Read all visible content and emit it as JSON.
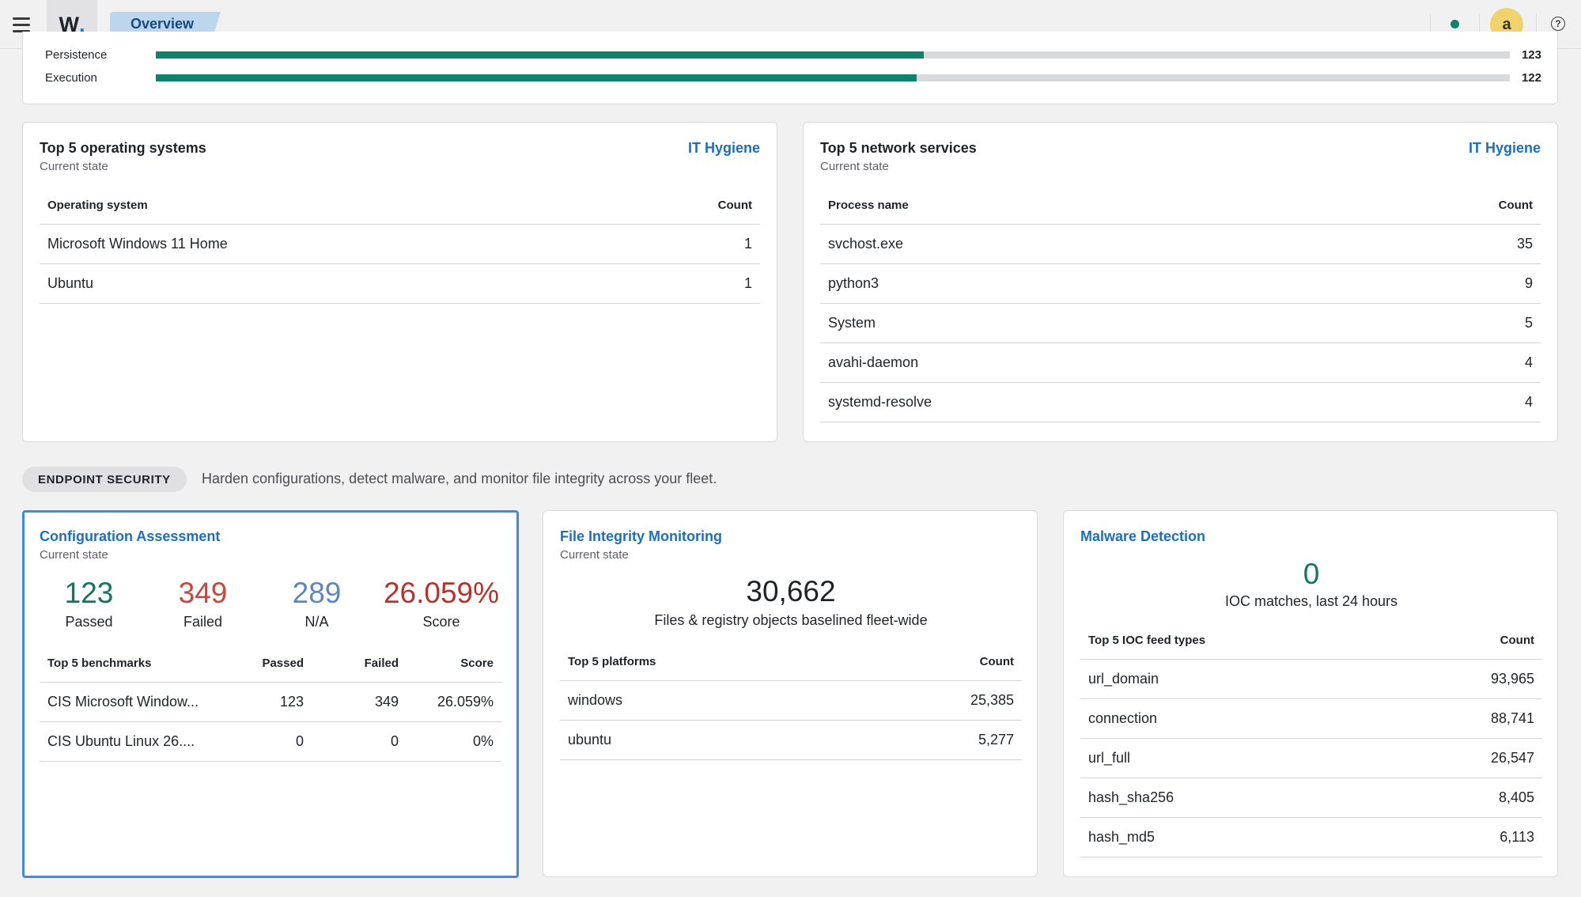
{
  "header": {
    "logo_letter": "W",
    "logo_dot": ".",
    "breadcrumb": "Overview",
    "avatar_letter": "a",
    "help_glyph": "?",
    "status_color": "#11826b"
  },
  "mitre": {
    "rows": [
      {
        "label": "Persistence",
        "value": "123",
        "fill": 0.567
      },
      {
        "label": "Execution",
        "value": "122",
        "fill": 0.562
      }
    ]
  },
  "os_card": {
    "title": "Top 5 operating systems",
    "subtitle": "Current state",
    "link": "IT Hygiene",
    "columns": [
      "Operating system",
      "Count"
    ],
    "rows": [
      [
        "Microsoft Windows 11 Home",
        "1"
      ],
      [
        "Ubuntu",
        "1"
      ]
    ]
  },
  "net_card": {
    "title": "Top 5 network services",
    "subtitle": "Current state",
    "link": "IT Hygiene",
    "columns": [
      "Process name",
      "Count"
    ],
    "rows": [
      [
        "svchost.exe",
        "35"
      ],
      [
        "python3",
        "9"
      ],
      [
        "System",
        "5"
      ],
      [
        "avahi-daemon",
        "4"
      ],
      [
        "systemd-resolve",
        "4"
      ]
    ]
  },
  "section": {
    "pill": "ENDPOINT SECURITY",
    "description": "Harden configurations, detect malware, and monitor file integrity across your fleet."
  },
  "config_card": {
    "title": "Configuration Assessment",
    "subtitle": "Current state",
    "metrics": [
      {
        "value": "123",
        "label": "Passed",
        "color": "#10775f"
      },
      {
        "value": "349",
        "label": "Failed",
        "color": "#c8473b"
      },
      {
        "value": "289",
        "label": "N/A",
        "color": "#5c87b8"
      },
      {
        "value": "26.059%",
        "label": "Score",
        "color": "#b8322c"
      }
    ],
    "columns": [
      "Top 5 benchmarks",
      "Passed",
      "Failed",
      "Score"
    ],
    "rows": [
      [
        "CIS Microsoft Window...",
        "123",
        "349",
        "26.059%"
      ],
      [
        "CIS Ubuntu Linux 26....",
        "0",
        "0",
        "0%"
      ]
    ]
  },
  "fim_card": {
    "title": "File Integrity Monitoring",
    "subtitle": "Current state",
    "big_value": "30,662",
    "big_label": "Files & registry objects baselined fleet-wide",
    "columns": [
      "Top 5 platforms",
      "Count"
    ],
    "rows": [
      [
        "windows",
        "25,385"
      ],
      [
        "ubuntu",
        "5,277"
      ]
    ]
  },
  "malware_card": {
    "title": "Malware Detection",
    "big_value": "0",
    "big_label": "IOC matches, last 24 hours",
    "big_color": "#10775f",
    "columns": [
      "Top 5 IOC feed types",
      "Count"
    ],
    "rows": [
      [
        "url_domain",
        "93,965"
      ],
      [
        "connection",
        "88,741"
      ],
      [
        "url_full",
        "26,547"
      ],
      [
        "hash_sha256",
        "8,405"
      ],
      [
        "hash_md5",
        "6,113"
      ]
    ]
  }
}
